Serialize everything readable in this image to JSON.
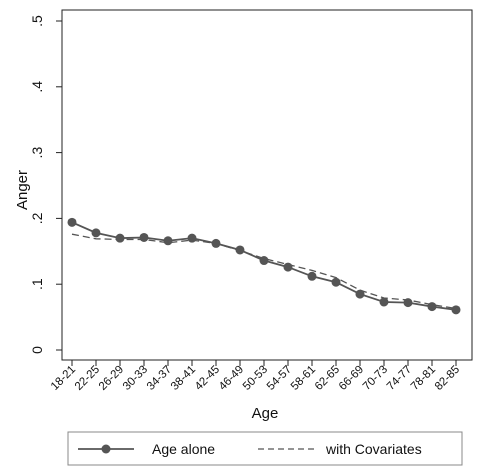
{
  "chart_data": {
    "type": "line",
    "title": "",
    "xlabel": "Age",
    "ylabel": "Anger",
    "categories": [
      "18-21",
      "22-25",
      "26-29",
      "30-33",
      "34-37",
      "38-41",
      "42-45",
      "46-49",
      "50-53",
      "54-57",
      "58-61",
      "62-65",
      "66-69",
      "70-73",
      "74-77",
      "78-81",
      "82-85"
    ],
    "yticks": [
      0,
      0.1,
      0.2,
      0.3,
      0.4,
      0.5
    ],
    "ytick_labels": [
      "0",
      ".1",
      ".2",
      ".3",
      ".4",
      ".5"
    ],
    "ylim": [
      0,
      0.5
    ],
    "grid": false,
    "legend_position": "bottom",
    "series": [
      {
        "name": "Age alone",
        "style": "solid-markers",
        "color": "#555555",
        "values": [
          0.194,
          0.178,
          0.17,
          0.171,
          0.166,
          0.17,
          0.162,
          0.152,
          0.136,
          0.126,
          0.112,
          0.103,
          0.085,
          0.073,
          0.072,
          0.066,
          0.061
        ]
      },
      {
        "name": "with Covariates",
        "style": "dashed",
        "color": "#555555",
        "values": [
          0.176,
          0.169,
          0.168,
          0.168,
          0.163,
          0.167,
          0.162,
          0.151,
          0.139,
          0.13,
          0.121,
          0.11,
          0.091,
          0.079,
          0.076,
          0.069,
          0.063
        ]
      }
    ]
  }
}
